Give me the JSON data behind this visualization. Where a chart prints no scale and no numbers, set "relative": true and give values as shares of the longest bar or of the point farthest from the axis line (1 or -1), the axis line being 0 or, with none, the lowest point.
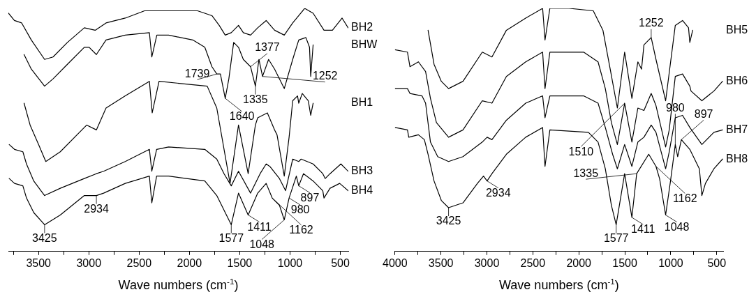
{
  "chart_data": [
    {
      "type": "line",
      "relative": true,
      "xlabel": "Wave numbers (cm$^{-1}$)",
      "xlim": [
        3800,
        420
      ],
      "xticks": [
        {
          "value": 3750,
          "label": null
        },
        3500,
        {
          "value": 3250,
          "label": null
        },
        3000,
        {
          "value": 2750,
          "label": null
        },
        2500,
        {
          "value": 2250,
          "label": null
        },
        2000,
        {
          "value": 1750,
          "label": null
        },
        1500,
        {
          "value": 1250,
          "label": null
        },
        1000,
        {
          "value": 750,
          "label": null
        },
        500
      ],
      "series": [
        {
          "name": "BH2",
          "color": "#000000",
          "x": [
            3799,
            3740,
            3668,
            3572,
            3440,
            3356,
            3213,
            3045,
            2937,
            2829,
            2638,
            2446,
            2207,
            1919,
            1776,
            1704,
            1644,
            1584,
            1512,
            1464,
            1392,
            1321,
            1237,
            1153,
            1057,
            973,
            913,
            854,
            770,
            662,
            578,
            482,
            422
          ],
          "values": [
            0.98,
            0.95,
            0.94,
            0.87,
            0.79,
            0.8,
            0.86,
            0.92,
            0.91,
            0.94,
            0.96,
            0.99,
            0.99,
            0.99,
            0.97,
            0.93,
            0.89,
            0.9,
            0.93,
            0.9,
            0.89,
            0.92,
            0.95,
            0.91,
            0.89,
            0.94,
            0.97,
            1,
            0.98,
            0.91,
            0.91,
            0.96,
            0.92
          ]
        },
        {
          "name": "BHW",
          "color": "#000000",
          "x": [
            3644,
            3572,
            3440,
            3356,
            3213,
            3045,
            2997,
            2925,
            2829,
            2638,
            2398,
            2374,
            2324,
            2207,
            1967,
            1847,
            1776,
            1728,
            1692,
            1644,
            1608,
            1560,
            1512,
            1464,
            1392,
            1344,
            1309,
            1273,
            1213,
            1153,
            1057,
            973,
            913,
            842,
            806,
            794,
            770
          ],
          "values": [
            0.81,
            0.75,
            0.68,
            0.71,
            0.77,
            0.84,
            0.84,
            0.81,
            0.87,
            0.89,
            0.9,
            0.8,
            0.89,
            0.89,
            0.87,
            0.84,
            0.76,
            0.73,
            0.73,
            0.63,
            0.71,
            0.86,
            0.84,
            0.79,
            0.76,
            0.68,
            0.79,
            0.72,
            0.79,
            0.75,
            0.67,
            0.79,
            0.87,
            0.88,
            0.84,
            0.72,
            0.85
          ]
        },
        {
          "name": "BH1",
          "color": "#000000",
          "x": [
            3644,
            3584,
            3500,
            3428,
            3284,
            3093,
            3021,
            2925,
            2829,
            2638,
            2398,
            2370,
            2302,
            1823,
            1728,
            1596,
            1512,
            1416,
            1344,
            1321,
            1225,
            1153,
            1129,
            1057,
            1009,
            973,
            925,
            913,
            878,
            818,
            794,
            770
          ],
          "values": [
            0.61,
            0.52,
            0.44,
            0.37,
            0.41,
            0.49,
            0.52,
            0.5,
            0.59,
            0.64,
            0.7,
            0.57,
            0.7,
            0.68,
            0.59,
            0.28,
            0.52,
            0.32,
            0.52,
            0.55,
            0.57,
            0.5,
            0.48,
            0.31,
            0.47,
            0.62,
            0.64,
            0.61,
            0.65,
            0.62,
            0.56,
            0.61
          ]
        },
        {
          "name": "BH3",
          "color": "#000000",
          "x": [
            3792,
            3739,
            3656,
            3620,
            3548,
            3440,
            3284,
            3045,
            2925,
            2853,
            2638,
            2398,
            2374,
            2326,
            2207,
            1847,
            1728,
            1656,
            1584,
            1512,
            1392,
            1297,
            1237,
            1201,
            1105,
            1044,
            973,
            913,
            889,
            770,
            674,
            650,
            602,
            494,
            422
          ],
          "values": [
            0.44,
            0.42,
            0.41,
            0.36,
            0.29,
            0.23,
            0.26,
            0.3,
            0.32,
            0.33,
            0.37,
            0.42,
            0.33,
            0.42,
            0.43,
            0.42,
            0.38,
            0.32,
            0.27,
            0.33,
            0.24,
            0.32,
            0.36,
            0.35,
            0.3,
            0.25,
            0.38,
            0.37,
            0.38,
            0.36,
            0.32,
            0.3,
            0.32,
            0.36,
            0.33
          ]
        },
        {
          "name": "BH4",
          "color": "#000000",
          "x": [
            3792,
            3739,
            3656,
            3620,
            3548,
            3440,
            3284,
            3045,
            2925,
            2853,
            2638,
            2398,
            2374,
            2326,
            2207,
            1847,
            1728,
            1656,
            1584,
            1512,
            1416,
            1321,
            1237,
            1177,
            1105,
            1057,
            1009,
            937,
            913,
            866,
            770,
            674,
            662,
            602,
            506,
            422
          ],
          "values": [
            0.3,
            0.28,
            0.27,
            0.22,
            0.16,
            0.11,
            0.15,
            0.23,
            0.23,
            0.24,
            0.28,
            0.31,
            0.2,
            0.31,
            0.31,
            0.29,
            0.23,
            0.17,
            0.11,
            0.24,
            0.15,
            0.24,
            0.28,
            0.22,
            0.19,
            0.13,
            0.22,
            0.31,
            0.27,
            0.32,
            0.29,
            0.25,
            0.22,
            0.26,
            0.28,
            0.25
          ]
        }
      ],
      "annotations": [
        {
          "text": "1739",
          "x": 1728,
          "y": 0.73
        },
        {
          "text": "1377",
          "x": 1392,
          "y": 0.76
        },
        {
          "text": "1335",
          "x": 1344,
          "y": 0.68
        },
        {
          "text": "1252",
          "x": 1273,
          "y": 0.72
        },
        {
          "text": "1640",
          "x": 1644,
          "y": 0.63
        },
        {
          "text": "2934",
          "x": 2925,
          "y": 0.23
        },
        {
          "text": "3425",
          "x": 3440,
          "y": 0.11
        },
        {
          "text": "1577",
          "x": 1584,
          "y": 0.11
        },
        {
          "text": "1411",
          "x": 1416,
          "y": 0.15
        },
        {
          "text": "1162",
          "x": 1177,
          "y": 0.22
        },
        {
          "text": "1048",
          "x": 1057,
          "y": 0.13
        },
        {
          "text": "980",
          "x": 1009,
          "y": 0.22
        },
        {
          "text": "897",
          "x": 913,
          "y": 0.27
        }
      ]
    },
    {
      "type": "line",
      "relative": true,
      "xlabel": "Wave numbers (cm$^{-1}$)",
      "xlim": [
        4000,
        430
      ],
      "xticks": [
        4000,
        {
          "value": 3750,
          "label": null
        },
        3500,
        {
          "value": 3250,
          "label": null
        },
        3000,
        {
          "value": 2750,
          "label": null
        },
        2500,
        {
          "value": 2250,
          "label": null
        },
        2000,
        {
          "value": 1750,
          "label": null
        },
        1500,
        {
          "value": 1250,
          "label": null
        },
        1000,
        {
          "value": 750,
          "label": null
        },
        500
      ],
      "series": [
        {
          "name": "BH5",
          "color": "#000000",
          "x": [
            3640,
            3575,
            3496,
            3417,
            3260,
            3050,
            2945,
            2788,
            2578,
            2394,
            2368,
            2315,
            2105,
            1843,
            1738,
            1659,
            1581,
            1502,
            1423,
            1358,
            1318,
            1292,
            1213,
            1161,
            1056,
            951,
            872,
            807,
            793,
            762
          ],
          "values": [
            0.91,
            0.77,
            0.7,
            0.67,
            0.7,
            0.82,
            0.8,
            0.91,
            0.96,
            1,
            0.87,
            1,
            1,
            0.99,
            0.91,
            0.75,
            0.59,
            0.82,
            0.63,
            0.78,
            0.75,
            0.85,
            0.88,
            0.79,
            0.62,
            0.93,
            0.95,
            0.92,
            0.86,
            0.91
          ]
        },
        {
          "name": "BH6",
          "color": "#000000",
          "x": [
            4000,
            3864,
            3837,
            3745,
            3667,
            3614,
            3549,
            3417,
            3260,
            3050,
            2945,
            2788,
            2578,
            2394,
            2368,
            2315,
            1948,
            1791,
            1712,
            1646,
            1581,
            1502,
            1423,
            1358,
            1292,
            1213,
            1161,
            1056,
            1017,
            951,
            872,
            793,
            780,
            662,
            531,
            437
          ],
          "values": [
            0.83,
            0.82,
            0.76,
            0.78,
            0.74,
            0.63,
            0.53,
            0.47,
            0.5,
            0.62,
            0.61,
            0.72,
            0.78,
            0.82,
            0.67,
            0.82,
            0.82,
            0.78,
            0.67,
            0.53,
            0.44,
            0.61,
            0.45,
            0.59,
            0.58,
            0.65,
            0.6,
            0.43,
            0.5,
            0.72,
            0.73,
            0.68,
            0.66,
            0.62,
            0.66,
            0.7
          ]
        },
        {
          "name": "BH7",
          "color": "#000000",
          "x": [
            4000,
            3864,
            3837,
            3706,
            3667,
            3614,
            3535,
            3417,
            3260,
            3050,
            2998,
            2945,
            2788,
            2578,
            2394,
            2368,
            2315,
            1948,
            1791,
            1712,
            1633,
            1581,
            1502,
            1423,
            1358,
            1292,
            1213,
            1161,
            1056,
            1017,
            951,
            872,
            793,
            662,
            531,
            437
          ],
          "values": [
            0.67,
            0.67,
            0.65,
            0.64,
            0.61,
            0.45,
            0.39,
            0.37,
            0.39,
            0.45,
            0.47,
            0.46,
            0.54,
            0.61,
            0.64,
            0.55,
            0.64,
            0.64,
            0.61,
            0.51,
            0.4,
            0.34,
            0.44,
            0.35,
            0.45,
            0.47,
            0.52,
            0.49,
            0.34,
            0.41,
            0.55,
            0.56,
            0.51,
            0.44,
            0.49,
            0.5
          ]
        },
        {
          "name": "BH8",
          "color": "#000000",
          "x": [
            4000,
            3864,
            3850,
            3745,
            3680,
            3640,
            3575,
            3496,
            3417,
            3260,
            3103,
            3037,
            2998,
            2945,
            2788,
            2578,
            2394,
            2368,
            2315,
            1896,
            1791,
            1712,
            1646,
            1594,
            1502,
            1423,
            1371,
            1240,
            1161,
            1122,
            1056,
            1003,
            951,
            925,
            885,
            793,
            689,
            662,
            623,
            531,
            437
          ],
          "values": [
            0.51,
            0.5,
            0.47,
            0.48,
            0.46,
            0.4,
            0.29,
            0.21,
            0.18,
            0.2,
            0.28,
            0.31,
            0.29,
            0.32,
            0.4,
            0.47,
            0.51,
            0.35,
            0.5,
            0.49,
            0.45,
            0.34,
            0.19,
            0.11,
            0.32,
            0.14,
            0.32,
            0.4,
            0.35,
            0.3,
            0.15,
            0.29,
            0.44,
            0.39,
            0.46,
            0.42,
            0.34,
            0.23,
            0.28,
            0.34,
            0.38
          ]
        }
      ],
      "annotations": [
        {
          "text": "1252",
          "x": 1213,
          "y": 0.88
        },
        {
          "text": "1510",
          "x": 1502,
          "y": 0.61
        },
        {
          "text": "2934",
          "x": 2998,
          "y": 0.29
        },
        {
          "text": "3425",
          "x": 3417,
          "y": 0.18
        },
        {
          "text": "1577",
          "x": 1594,
          "y": 0.11
        },
        {
          "text": "1411",
          "x": 1423,
          "y": 0.14
        },
        {
          "text": "1335",
          "x": 1371,
          "y": 0.32
        },
        {
          "text": "1162",
          "x": 1161,
          "y": 0.35
        },
        {
          "text": "1048",
          "x": 1056,
          "y": 0.15
        },
        {
          "text": "897",
          "x": 885,
          "y": 0.46
        },
        {
          "text": "980",
          "x": 951,
          "y": 0.44
        }
      ]
    }
  ]
}
